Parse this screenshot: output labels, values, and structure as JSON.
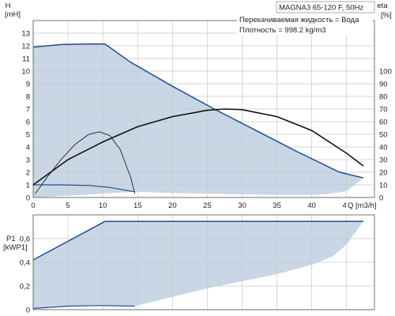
{
  "chart_data": [
    {
      "type": "line",
      "title": "MAGNA3 65-120 F, 50Hz",
      "annotations": [
        "Перекачиваемая жидкость = Вода",
        "Плотность = 998.2 kg/m3"
      ],
      "xlabel": "Q [m3/h]",
      "ylabel_left": [
        "H",
        "[mH]"
      ],
      "ylabel_right": [
        "eta",
        "[%]"
      ],
      "xlim": [
        0,
        49
      ],
      "ylim_left": [
        0,
        14
      ],
      "ylim_right": [
        0,
        140
      ],
      "x_ticks": [
        0,
        5,
        10,
        15,
        20,
        25,
        30,
        35,
        40,
        45
      ],
      "y_ticks_left": [
        0,
        1,
        2,
        3,
        4,
        5,
        6,
        7,
        8,
        9,
        10,
        11,
        12,
        13
      ],
      "y_ticks_right": [
        0,
        10,
        20,
        30,
        40,
        50,
        60,
        70,
        80,
        90,
        100
      ],
      "grid": true,
      "colors": {
        "curve": "#1f4e8c",
        "fill": "#c8d6e5",
        "eta": "#111111"
      },
      "series": [
        {
          "axis": "left",
          "style": "max-curve",
          "x": [
            0,
            4,
            8,
            10.3,
            14,
            20,
            26,
            32,
            38,
            44,
            47.4
          ],
          "y": [
            11.9,
            12.1,
            12.15,
            12.15,
            10.7,
            8.8,
            7.0,
            5.3,
            3.6,
            2.0,
            1.55
          ]
        },
        {
          "axis": "left",
          "style": "min-curve",
          "x": [
            0,
            4,
            8,
            11,
            14.6
          ],
          "y": [
            1.0,
            1.0,
            0.95,
            0.8,
            0.45
          ]
        },
        {
          "axis": "left",
          "style": "lower-boundary",
          "x": [
            0,
            14.6,
            20,
            30,
            38,
            42,
            45,
            47.4
          ],
          "y": [
            0,
            0.45,
            0.35,
            0.25,
            0.2,
            0.25,
            0.5,
            1.55
          ]
        },
        {
          "axis": "right",
          "style": "eta-max",
          "x": [
            0,
            5,
            10,
            15,
            20,
            25,
            27.5,
            30,
            35,
            40,
            45,
            47.4
          ],
          "y": [
            10,
            30,
            44,
            56,
            64,
            69,
            70,
            69.5,
            64,
            53,
            35,
            25
          ]
        },
        {
          "axis": "right",
          "style": "eta-min",
          "x": [
            0.3,
            2,
            4,
            6,
            8,
            9.5,
            11,
            12.5,
            14,
            14.6
          ],
          "y": [
            3,
            16,
            30,
            42,
            50,
            52,
            49,
            38,
            16,
            3
          ]
        }
      ]
    },
    {
      "type": "line",
      "ylabel": [
        "P1",
        "[kWP1]"
      ],
      "xlim": [
        0,
        49
      ],
      "ylim": [
        0,
        0.8
      ],
      "y_ticks": [
        "0",
        "0,2",
        "0,4",
        "0,6"
      ],
      "x_tick_positions": [
        0,
        5,
        10,
        15,
        20,
        25,
        30,
        35,
        40,
        45
      ],
      "grid": true,
      "series": [
        {
          "style": "max-power",
          "x": [
            0,
            10.3,
            20,
            30,
            40,
            47.4
          ],
          "y": [
            0.42,
            0.745,
            0.745,
            0.745,
            0.745,
            0.745
          ]
        },
        {
          "style": "min-power",
          "x": [
            0,
            5,
            10,
            14.6
          ],
          "y": [
            0.01,
            0.03,
            0.035,
            0.03
          ]
        },
        {
          "style": "lower-boundary",
          "x": [
            14.6,
            25,
            35,
            40,
            43,
            45,
            47.4
          ],
          "y": [
            0.03,
            0.18,
            0.3,
            0.38,
            0.45,
            0.55,
            0.745
          ]
        }
      ]
    }
  ]
}
